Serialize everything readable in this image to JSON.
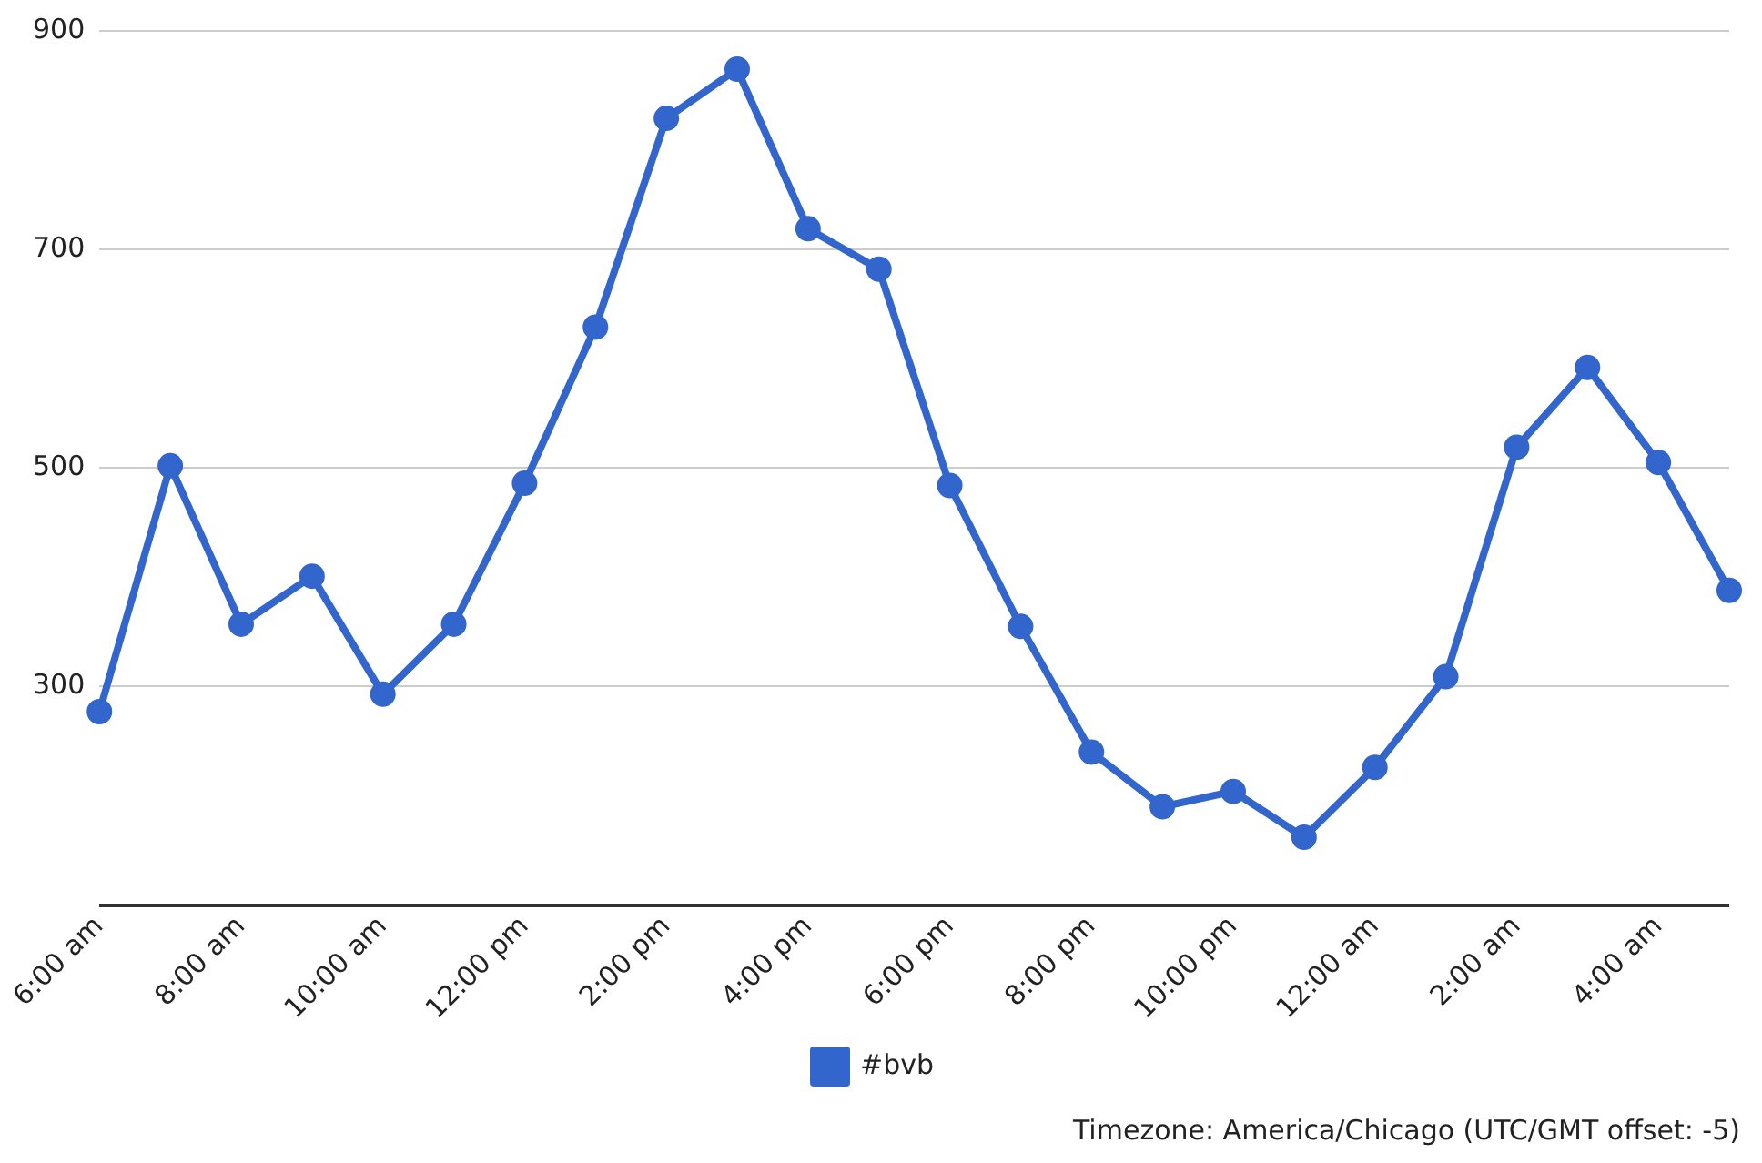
{
  "chart_data": {
    "type": "line",
    "categories": [
      "6:00 am",
      null,
      "8:00 am",
      null,
      "10:00 am",
      null,
      "12:00 pm",
      null,
      "2:00 pm",
      null,
      "4:00 pm",
      null,
      "6:00 pm",
      null,
      "8:00 pm",
      null,
      "10:00 pm",
      null,
      "12:00 am",
      null,
      "2:00 am",
      null,
      "4:00 am",
      null
    ],
    "series": [
      {
        "name": "#bvb",
        "color": "#3366cc",
        "values": [
          277,
          502,
          357,
          401,
          293,
          357,
          486,
          629,
          820,
          865,
          719,
          682,
          484,
          355,
          240,
          190,
          204,
          162,
          226,
          309,
          519,
          592,
          505,
          388
        ]
      }
    ],
    "ylim": [
      100,
      900
    ],
    "yticks": [
      {
        "value": 100,
        "label": null
      },
      300,
      500,
      700,
      900
    ],
    "grid": "y",
    "legend": "bottom",
    "marker": "circle",
    "line_style": "solid",
    "annotations": [
      "Timezone: America/Chicago (UTC/GMT offset: -5)"
    ]
  }
}
